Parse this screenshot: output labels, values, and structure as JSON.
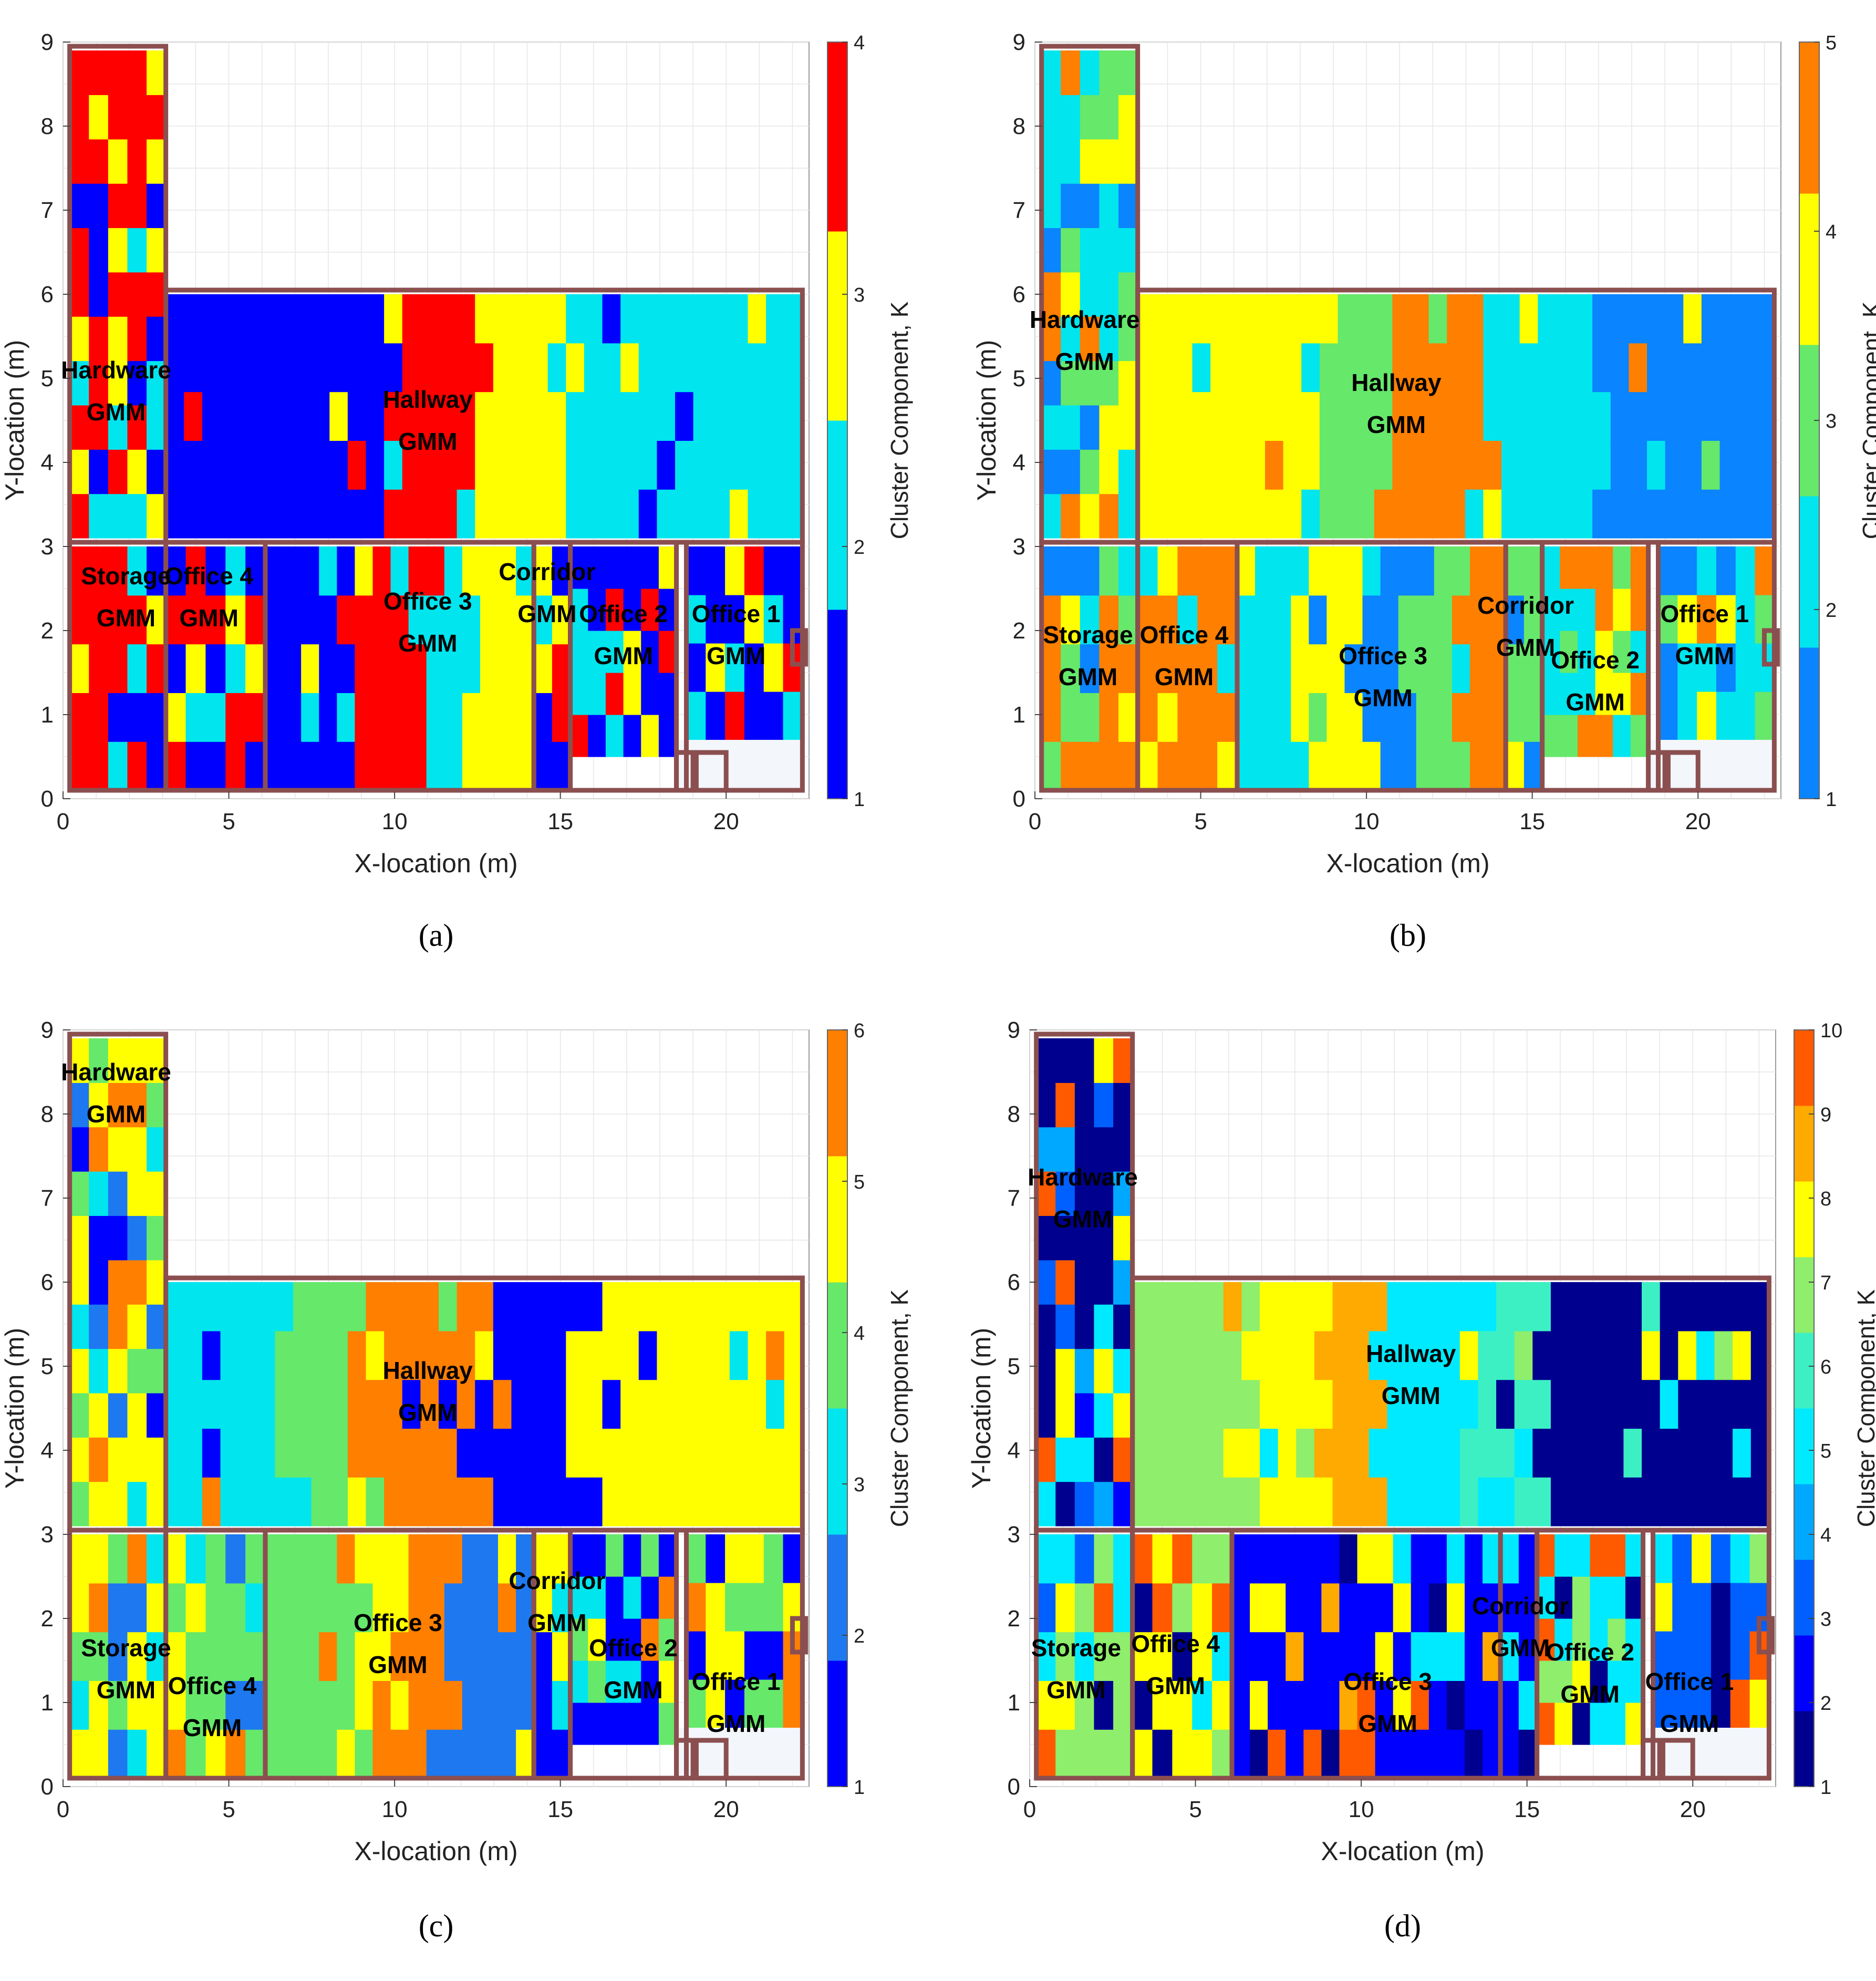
{
  "chart_data": [
    {
      "type": "heatmap",
      "caption": "(a)",
      "xlabel": "X-location (m)",
      "ylabel": "Y-location (m)",
      "colorbar_label": "Cluster Component, K",
      "k_max": 4,
      "colorbar_ticks": [
        "1",
        "2",
        "3",
        "4"
      ],
      "colors": [
        "#0000ff",
        "#00e5ee",
        "#ffff00",
        "#ff0000"
      ],
      "xlim": [
        0,
        22.5
      ],
      "ylim": [
        0,
        9
      ],
      "xticks": [
        "0",
        "5",
        "10",
        "15",
        "20"
      ],
      "yticks": [
        "0",
        "1",
        "2",
        "3",
        "4",
        "5",
        "6",
        "7",
        "8",
        "9"
      ],
      "room_labels": [
        {
          "text": "Hardware\nGMM",
          "x": 1.6,
          "y": 5.0
        },
        {
          "text": "Hallway\nGMM",
          "x": 11.0,
          "y": 4.65
        },
        {
          "text": "Storage\nGMM",
          "x": 1.9,
          "y": 2.55
        },
        {
          "text": "Office 4\nGMM",
          "x": 4.4,
          "y": 2.55
        },
        {
          "text": "Office 3\nGMM",
          "x": 11.0,
          "y": 2.25
        },
        {
          "text": "Corridor\nGMM",
          "x": 14.6,
          "y": 2.6
        },
        {
          "text": "Office 2\nGMM",
          "x": 16.9,
          "y": 2.1
        },
        {
          "text": "Office 1\nGMM",
          "x": 20.3,
          "y": 2.1
        }
      ],
      "regions": [
        {
          "name": "Hardware",
          "x": [
            0.2,
            3.1
          ],
          "y": [
            3.1,
            8.9
          ],
          "base": 4,
          "alt": [
            1,
            2,
            3
          ],
          "pattern": "mixed"
        },
        {
          "name": "Hallway",
          "x": [
            3.1,
            22.3
          ],
          "y": [
            3.1,
            6.0
          ],
          "base": 1,
          "pattern": "bands",
          "bands": [
            [
              3.1,
              9.5,
              1
            ],
            [
              9.5,
              12.3,
              4
            ],
            [
              12.3,
              15.0,
              3
            ],
            [
              15.0,
              22.3,
              2
            ]
          ]
        },
        {
          "name": "Storage",
          "x": [
            0.2,
            3.1
          ],
          "y": [
            0.1,
            3.0
          ],
          "base": 4,
          "alt": [
            1,
            2,
            3
          ],
          "pattern": "mixed"
        },
        {
          "name": "Office 4",
          "x": [
            3.1,
            6.1
          ],
          "y": [
            0.1,
            3.0
          ],
          "base": 4,
          "alt": [
            1,
            2,
            3
          ],
          "pattern": "mixed"
        },
        {
          "name": "Office 3",
          "x": [
            6.1,
            14.2
          ],
          "y": [
            0.1,
            3.0
          ],
          "base": 1,
          "pattern": "bands",
          "bands": [
            [
              6.1,
              8.7,
              1
            ],
            [
              8.7,
              11.0,
              4
            ],
            [
              11.0,
              12.3,
              2
            ],
            [
              12.3,
              14.2,
              3
            ]
          ]
        },
        {
          "name": "Corridor",
          "x": [
            14.2,
            15.3
          ],
          "y": [
            0.1,
            3.0
          ],
          "base": 1,
          "alt": [
            2,
            3,
            4
          ],
          "pattern": "mixed"
        },
        {
          "name": "Office 2",
          "x": [
            15.3,
            18.5
          ],
          "y": [
            0.5,
            3.0
          ],
          "base": 1,
          "alt": [
            2,
            3,
            4
          ],
          "pattern": "mixed"
        },
        {
          "name": "Office 1",
          "x": [
            18.8,
            22.3
          ],
          "y": [
            0.7,
            3.0
          ],
          "base": 1,
          "alt": [
            2,
            3,
            4
          ],
          "pattern": "mixed"
        }
      ]
    },
    {
      "type": "heatmap",
      "caption": "(b)",
      "xlabel": "X-location (m)",
      "ylabel": "Y-location (m)",
      "colorbar_label": "Cluster Component, K",
      "k_max": 5,
      "colorbar_ticks": [
        "1",
        "2",
        "3",
        "4",
        "5"
      ],
      "colors": [
        "#0a84ff",
        "#00e5ee",
        "#66e86b",
        "#ffff00",
        "#ff7f00"
      ],
      "xlim": [
        0,
        22.5
      ],
      "ylim": [
        0,
        9
      ],
      "xticks": [
        "0",
        "5",
        "10",
        "15",
        "20"
      ],
      "yticks": [
        "0",
        "1",
        "2",
        "3",
        "4",
        "5",
        "6",
        "7",
        "8",
        "9"
      ],
      "room_labels": [
        {
          "text": "Hardware\nGMM",
          "x": 1.5,
          "y": 5.6
        },
        {
          "text": "Hallway\nGMM",
          "x": 10.9,
          "y": 4.85
        },
        {
          "text": "Storage\nGMM",
          "x": 1.6,
          "y": 1.85
        },
        {
          "text": "Office 4\nGMM",
          "x": 4.5,
          "y": 1.85
        },
        {
          "text": "Office 3\nGMM",
          "x": 10.5,
          "y": 1.6
        },
        {
          "text": "Corridor\nGMM",
          "x": 14.8,
          "y": 2.2
        },
        {
          "text": "Office 2\nGMM",
          "x": 16.9,
          "y": 1.55
        },
        {
          "text": "Office 1\nGMM",
          "x": 20.2,
          "y": 2.1
        }
      ],
      "regions": [
        {
          "name": "Hardware",
          "x": [
            0.2,
            3.1
          ],
          "y": [
            3.1,
            8.9
          ],
          "base": 2,
          "alt": [
            1,
            3,
            4,
            5
          ],
          "pattern": "mixed"
        },
        {
          "name": "Hallway",
          "x": [
            3.1,
            22.3
          ],
          "y": [
            3.1,
            6.0
          ],
          "base": 4,
          "pattern": "bands",
          "bands": [
            [
              3.1,
              8.5,
              4
            ],
            [
              8.5,
              10.7,
              3
            ],
            [
              10.7,
              13.5,
              5
            ],
            [
              13.5,
              17.0,
              2
            ],
            [
              17.0,
              22.3,
              1
            ]
          ]
        },
        {
          "name": "Storage",
          "x": [
            0.2,
            3.1
          ],
          "y": [
            0.1,
            3.0
          ],
          "base": 5,
          "alt": [
            1,
            2,
            3,
            4
          ],
          "pattern": "mixed"
        },
        {
          "name": "Office 4",
          "x": [
            3.1,
            6.1
          ],
          "y": [
            0.1,
            3.0
          ],
          "base": 5,
          "alt": [
            2,
            4
          ],
          "pattern": "mixed"
        },
        {
          "name": "Office 3",
          "x": [
            6.1,
            14.2
          ],
          "y": [
            0.1,
            3.0
          ],
          "base": 4,
          "pattern": "bands",
          "bands": [
            [
              6.1,
              8.1,
              2
            ],
            [
              8.1,
              10.0,
              4
            ],
            [
              10.0,
              11.5,
              1
            ],
            [
              11.5,
              12.8,
              3
            ],
            [
              12.8,
              14.2,
              5
            ]
          ]
        },
        {
          "name": "Corridor",
          "x": [
            14.2,
            15.3
          ],
          "y": [
            0.1,
            3.0
          ],
          "base": 3,
          "alt": [
            1,
            2,
            4
          ],
          "pattern": "mixed"
        },
        {
          "name": "Office 2",
          "x": [
            15.3,
            18.5
          ],
          "y": [
            0.5,
            3.0
          ],
          "base": 2,
          "alt": [
            3,
            4,
            5
          ],
          "pattern": "mixed"
        },
        {
          "name": "Office 1",
          "x": [
            18.8,
            22.3
          ],
          "y": [
            0.7,
            3.0
          ],
          "base": 2,
          "alt": [
            1,
            3,
            4,
            5
          ],
          "pattern": "mixed"
        }
      ]
    },
    {
      "type": "heatmap",
      "caption": "(c)",
      "xlabel": "X-location (m)",
      "ylabel": "Y-location (m)",
      "colorbar_label": "Cluster Component, K",
      "k_max": 6,
      "colorbar_ticks": [
        "1",
        "2",
        "3",
        "4",
        "5",
        "6"
      ],
      "colors": [
        "#0000ff",
        "#1e78f0",
        "#00e5ee",
        "#66e86b",
        "#ffff00",
        "#ff7f00"
      ],
      "xlim": [
        0,
        22.5
      ],
      "ylim": [
        0,
        9
      ],
      "xticks": [
        "0",
        "5",
        "10",
        "15",
        "20"
      ],
      "yticks": [
        "0",
        "1",
        "2",
        "3",
        "4",
        "5",
        "6",
        "7",
        "8",
        "9"
      ],
      "room_labels": [
        {
          "text": "Hardware\nGMM",
          "x": 1.6,
          "y": 8.4
        },
        {
          "text": "Hallway\nGMM",
          "x": 11.0,
          "y": 4.85
        },
        {
          "text": "Storage\nGMM",
          "x": 1.9,
          "y": 1.55
        },
        {
          "text": "Office 4\nGMM",
          "x": 4.5,
          "y": 1.1
        },
        {
          "text": "Office 3\nGMM",
          "x": 10.1,
          "y": 1.85
        },
        {
          "text": "Corridor\nGMM",
          "x": 14.9,
          "y": 2.35
        },
        {
          "text": "Office 2\nGMM",
          "x": 17.2,
          "y": 1.55
        },
        {
          "text": "Office 1\nGMM",
          "x": 20.3,
          "y": 1.15
        }
      ],
      "regions": [
        {
          "name": "Hardware",
          "x": [
            0.2,
            3.1
          ],
          "y": [
            3.1,
            8.9
          ],
          "base": 5,
          "alt": [
            1,
            2,
            3,
            4,
            6
          ],
          "pattern": "mixed"
        },
        {
          "name": "Hallway",
          "x": [
            3.1,
            22.3
          ],
          "y": [
            3.1,
            6.0
          ],
          "base": 3,
          "pattern": "bands",
          "bands": [
            [
              3.1,
              6.8,
              3
            ],
            [
              6.8,
              9.0,
              4
            ],
            [
              9.0,
              12.6,
              6
            ],
            [
              12.6,
              15.8,
              1
            ],
            [
              15.8,
              22.3,
              5
            ]
          ]
        },
        {
          "name": "Storage",
          "x": [
            0.2,
            3.1
          ],
          "y": [
            0.1,
            3.0
          ],
          "base": 5,
          "alt": [
            2,
            3,
            4,
            6
          ],
          "pattern": "mixed"
        },
        {
          "name": "Office 4",
          "x": [
            3.1,
            6.1
          ],
          "y": [
            0.1,
            3.0
          ],
          "base": 4,
          "alt": [
            2,
            3,
            5,
            6
          ],
          "pattern": "mixed"
        },
        {
          "name": "Office 3",
          "x": [
            6.1,
            14.2
          ],
          "y": [
            0.1,
            3.0
          ],
          "base": 4,
          "pattern": "bands",
          "bands": [
            [
              6.1,
              8.6,
              4
            ],
            [
              8.6,
              10.0,
              5
            ],
            [
              10.0,
              11.6,
              6
            ],
            [
              11.6,
              14.2,
              2
            ]
          ]
        },
        {
          "name": "Corridor",
          "x": [
            14.2,
            15.3
          ],
          "y": [
            0.1,
            3.0
          ],
          "base": 5,
          "alt": [
            1,
            3,
            4
          ],
          "pattern": "mixed"
        },
        {
          "name": "Office 2",
          "x": [
            15.3,
            18.5
          ],
          "y": [
            0.5,
            3.0
          ],
          "base": 1,
          "alt": [
            3,
            4,
            5,
            6
          ],
          "pattern": "mixed"
        },
        {
          "name": "Office 1",
          "x": [
            18.8,
            22.3
          ],
          "y": [
            0.7,
            3.0
          ],
          "base": 4,
          "alt": [
            1,
            5,
            6
          ],
          "pattern": "mixed"
        }
      ]
    },
    {
      "type": "heatmap",
      "caption": "(d)",
      "xlabel": "X-location (m)",
      "ylabel": "Y-location (m)",
      "colorbar_label": "Cluster Component, K",
      "k_max": 10,
      "colorbar_ticks": [
        "1",
        "2",
        "3",
        "4",
        "5",
        "6",
        "7",
        "8",
        "9",
        "10"
      ],
      "colors": [
        "#00008f",
        "#0000ff",
        "#005fff",
        "#00a8ff",
        "#00eaff",
        "#3cf0c3",
        "#8fee6b",
        "#ffff00",
        "#ffaa00",
        "#ff5a00"
      ],
      "xlim": [
        0,
        22.5
      ],
      "ylim": [
        0,
        9
      ],
      "xticks": [
        "0",
        "5",
        "10",
        "15",
        "20"
      ],
      "yticks": [
        "0",
        "1",
        "2",
        "3",
        "4",
        "5",
        "6",
        "7",
        "8",
        "9"
      ],
      "room_labels": [
        {
          "text": "Hardware\nGMM",
          "x": 1.6,
          "y": 7.15
        },
        {
          "text": "Hallway\nGMM",
          "x": 11.5,
          "y": 5.05
        },
        {
          "text": "Storage\nGMM",
          "x": 1.4,
          "y": 1.55
        },
        {
          "text": "Office 4\nGMM",
          "x": 4.4,
          "y": 1.6
        },
        {
          "text": "Office 3\nGMM",
          "x": 10.8,
          "y": 1.15
        },
        {
          "text": "Corridor\nGMM",
          "x": 14.8,
          "y": 2.05
        },
        {
          "text": "Office 2\nGMM",
          "x": 16.9,
          "y": 1.5
        },
        {
          "text": "Office 1\nGMM",
          "x": 19.9,
          "y": 1.15
        }
      ],
      "regions": [
        {
          "name": "Hardware",
          "x": [
            0.2,
            3.1
          ],
          "y": [
            3.1,
            8.9
          ],
          "base": 1,
          "alt": [
            2,
            3,
            4,
            5,
            8,
            10
          ],
          "pattern": "mixed"
        },
        {
          "name": "Hallway",
          "x": [
            3.1,
            22.3
          ],
          "y": [
            3.1,
            6.0
          ],
          "base": 7,
          "pattern": "bands",
          "bands": [
            [
              3.1,
              6.6,
              7
            ],
            [
              6.6,
              8.8,
              8
            ],
            [
              8.8,
              10.6,
              9
            ],
            [
              10.6,
              13.5,
              5
            ],
            [
              13.5,
              15.3,
              6
            ],
            [
              15.3,
              22.3,
              1
            ]
          ]
        },
        {
          "name": "Storage",
          "x": [
            0.2,
            3.1
          ],
          "y": [
            0.1,
            3.0
          ],
          "base": 7,
          "alt": [
            1,
            3,
            5,
            8,
            10
          ],
          "pattern": "mixed"
        },
        {
          "name": "Office 4",
          "x": [
            3.1,
            6.1
          ],
          "y": [
            0.1,
            3.0
          ],
          "base": 8,
          "alt": [
            1,
            5,
            7,
            10
          ],
          "pattern": "mixed"
        },
        {
          "name": "Office 3",
          "x": [
            6.1,
            14.2
          ],
          "y": [
            0.1,
            3.0
          ],
          "base": 2,
          "alt": [
            1,
            5,
            8,
            9,
            10
          ],
          "pattern": "mixed"
        },
        {
          "name": "Corridor",
          "x": [
            14.2,
            15.3
          ],
          "y": [
            0.1,
            3.0
          ],
          "base": 2,
          "alt": [
            1,
            5,
            8,
            10
          ],
          "pattern": "mixed"
        },
        {
          "name": "Office 2",
          "x": [
            15.3,
            18.5
          ],
          "y": [
            0.5,
            3.0
          ],
          "base": 5,
          "alt": [
            1,
            7,
            8,
            10
          ],
          "pattern": "mixed"
        },
        {
          "name": "Office 1",
          "x": [
            18.8,
            22.3
          ],
          "y": [
            0.7,
            3.0
          ],
          "base": 3,
          "alt": [
            1,
            5,
            7,
            8,
            10
          ],
          "pattern": "mixed"
        }
      ]
    }
  ]
}
